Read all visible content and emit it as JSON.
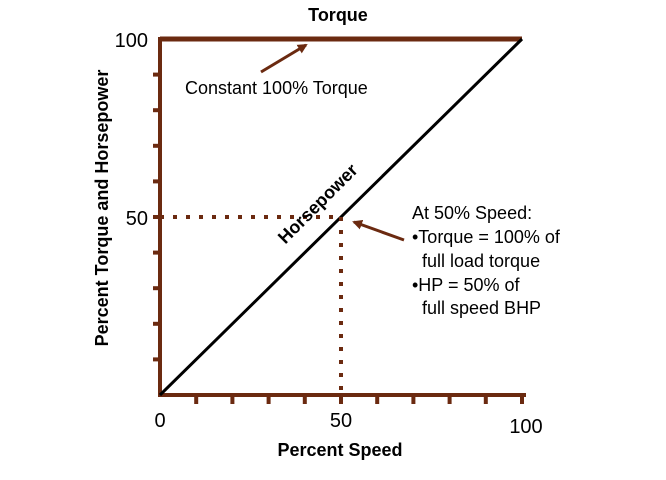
{
  "chart_data": {
    "type": "line",
    "title": "Torque",
    "xlabel": "Percent Speed",
    "ylabel": "Percent Torque and Horsepower",
    "xlim": [
      0,
      100
    ],
    "ylim": [
      0,
      100
    ],
    "x_ticks": [
      {
        "value": 0,
        "label": "0"
      },
      {
        "value": 50,
        "label": "50"
      },
      {
        "value": 100,
        "label": "100"
      }
    ],
    "y_ticks": [
      {
        "value": 50,
        "label": "50"
      },
      {
        "value": 100,
        "label": "100"
      }
    ],
    "x_minor_step": 10,
    "y_minor_step": 10,
    "series": [
      {
        "name": "Torque",
        "x": [
          0,
          100
        ],
        "y": [
          100,
          100
        ],
        "color": "#6b2a10"
      },
      {
        "name": "Horsepower",
        "x": [
          0,
          100
        ],
        "y": [
          0,
          100
        ],
        "color": "#000000"
      }
    ],
    "reference_point": {
      "x": 50,
      "y": 50,
      "style": "dotted",
      "color": "#6b2a10"
    },
    "annotations": {
      "torque_label": "Constant 100% Torque",
      "hp_label": "Horsepower",
      "note_lines": [
        "At 50% Speed:",
        "•Torque = 100% of",
        "  full load torque",
        "•HP = 50% of",
        "  full speed BHP"
      ]
    },
    "colors": {
      "axis": "#6b2a10",
      "arrow": "#6b2a10",
      "hp_line": "#000000"
    }
  }
}
